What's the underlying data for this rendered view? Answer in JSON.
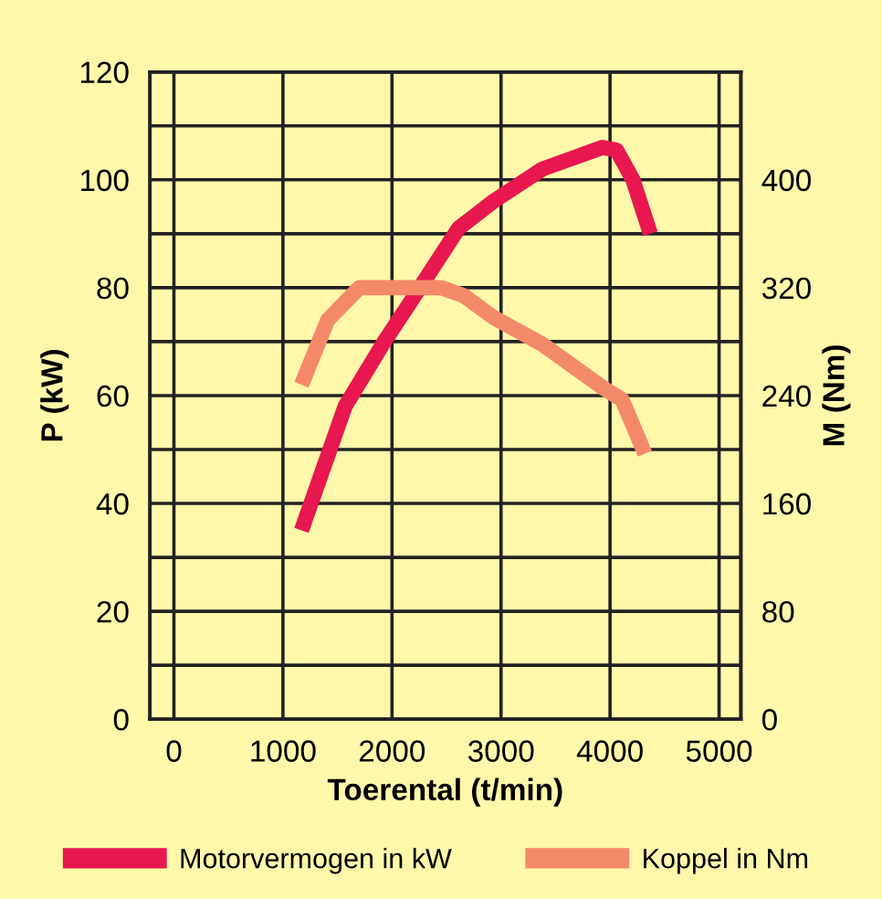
{
  "chart_data": {
    "type": "line",
    "xlabel": "Toerental (t/min)",
    "ylabel": "P (kW)",
    "y2label": "M (Nm)",
    "xlim": [
      -220,
      5200
    ],
    "xticks": [
      0,
      1000,
      2000,
      3000,
      4000,
      5000
    ],
    "ylim": [
      0,
      120
    ],
    "yticks": [
      0,
      20,
      40,
      60,
      80,
      100,
      120,
      {
        "value": 10,
        "label": null
      },
      {
        "value": 30,
        "label": null
      },
      {
        "value": 50,
        "label": null
      },
      {
        "value": 70,
        "label": null
      },
      {
        "value": 90,
        "label": null
      },
      {
        "value": 110,
        "label": null
      }
    ],
    "y2lim": [
      0,
      480
    ],
    "y2ticks": [
      0,
      80,
      160,
      240,
      320,
      400
    ],
    "grid": true,
    "legend": "bottom",
    "line_style": "solid",
    "marker": "none",
    "series": [
      {
        "name": "Motorvermogen in kW",
        "color": "#e8174f",
        "x": [
          1170,
          1570,
          1930,
          2240,
          2610,
          2930,
          3380,
          3930,
          4060,
          4210,
          4370
        ],
        "values": [
          35,
          58,
          70,
          79.5,
          91,
          96,
          102,
          106,
          105.5,
          100,
          90
        ]
      },
      {
        "name": "Koppel in Nm",
        "color": "#f4896a",
        "axis": "y2",
        "x": [
          1170,
          1410,
          1700,
          1930,
          2450,
          2660,
          2930,
          3380,
          3930,
          4110,
          4320
        ],
        "values": [
          248,
          296,
          320,
          320,
          320,
          314,
          298,
          278,
          246,
          237,
          197
        ]
      }
    ]
  }
}
